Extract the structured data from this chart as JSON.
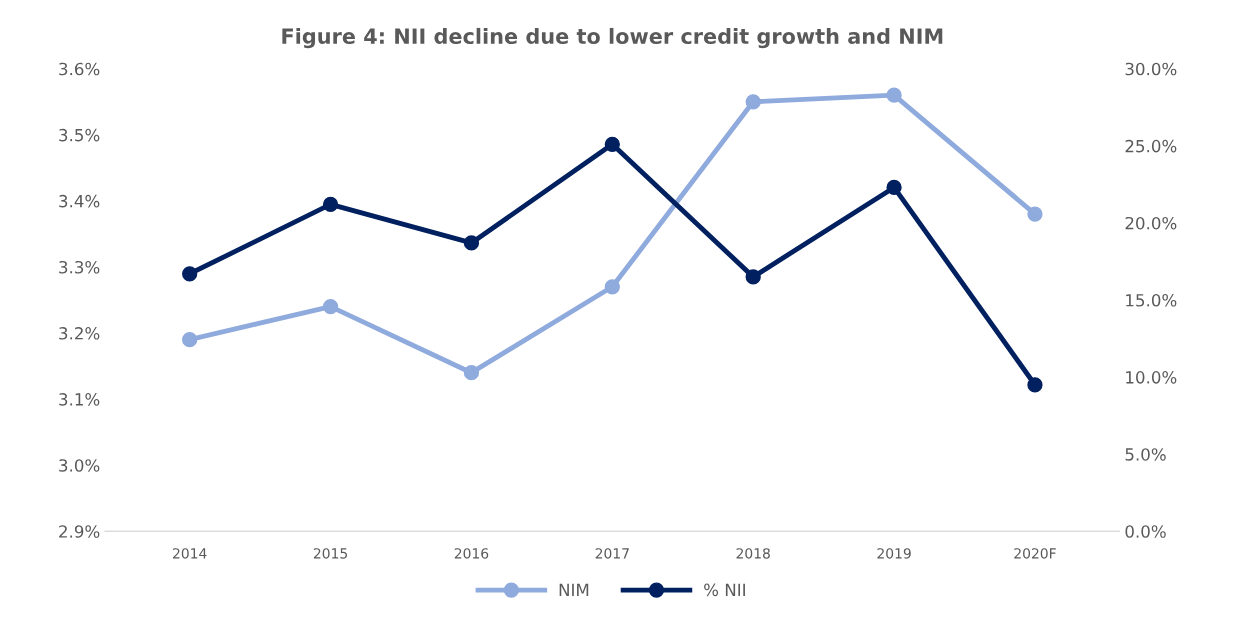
{
  "chart_data": {
    "type": "line",
    "title": "Figure 4: NII decline due to lower credit growth and NIM",
    "categories": [
      "2014",
      "2015",
      "2016",
      "2017",
      "2018",
      "2019",
      "2020F"
    ],
    "series": [
      {
        "name": "NIM",
        "color": "#8faadc",
        "values": [
          3.19,
          3.24,
          3.14,
          3.27,
          3.55,
          3.56,
          3.38
        ]
      },
      {
        "name": "% NII",
        "color": "#002060",
        "axis": "y2",
        "values": [
          16.7,
          21.2,
          18.7,
          25.1,
          16.5,
          22.3,
          9.5
        ]
      }
    ],
    "ylim": [
      2.9,
      3.6
    ],
    "yticks": [
      {
        "value": 2.9,
        "label": "2.9%"
      },
      {
        "value": 3.0,
        "label": "3.0%"
      },
      {
        "value": 3.1,
        "label": "3.1%"
      },
      {
        "value": 3.2,
        "label": "3.2%"
      },
      {
        "value": 3.3,
        "label": "3.3%"
      },
      {
        "value": 3.4,
        "label": "3.4%"
      },
      {
        "value": 3.5,
        "label": "3.5%"
      },
      {
        "value": 3.6,
        "label": "3.6%"
      }
    ],
    "y2lim": [
      0,
      30
    ],
    "y2ticks": [
      {
        "value": 0,
        "label": "0.0%"
      },
      {
        "value": 5,
        "label": "5.0%"
      },
      {
        "value": 10,
        "label": "10.0%"
      },
      {
        "value": 15,
        "label": "15.0%"
      },
      {
        "value": 20,
        "label": "20.0%"
      },
      {
        "value": 25,
        "label": "25.0%"
      },
      {
        "value": 30,
        "label": "30.0%"
      }
    ],
    "marker": "circle",
    "line_style": "solid",
    "grid": false,
    "legend": "bottom"
  }
}
